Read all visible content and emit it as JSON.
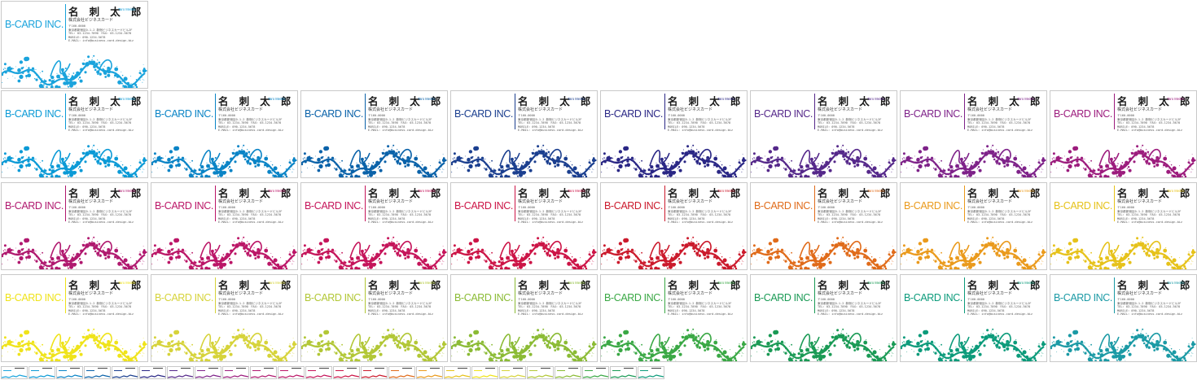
{
  "card_text": {
    "logo": "B-CARD INC.",
    "name": "名 刺 太 郎",
    "roman": "Taro Meishi",
    "company": "株式会社ビジネスカード",
    "postal": "〒160-0000",
    "address": "東京都新宿区0-1-2 新宿ビジネスカードビル2F",
    "tel_fax": "TEL: 03-1234-7890　FAX: 03-1234-5678",
    "mobile": "MOBILE: 090-1234-5678",
    "email": "E-MAIL: info@business-card-design.biz"
  },
  "featured_color": "#1aa3dc",
  "colors": [
    "#0b9ad6",
    "#0a84c6",
    "#0a62a9",
    "#1b3f8f",
    "#2a2785",
    "#55288a",
    "#7e2289",
    "#9c1c7d",
    "#b0196f",
    "#bb1667",
    "#c5145a",
    "#cc1446",
    "#cb1a2c",
    "#e06b1a",
    "#ea9a1c",
    "#e6c21a",
    "#efe31a",
    "#d6d33a",
    "#b2c736",
    "#8bbb35",
    "#3aa845",
    "#1a9a55",
    "#0c9b7b",
    "#1b9aa5",
    "#1ea0c6",
    "#1ba5d2"
  ],
  "thumbnail_colors": [
    "#1aa3dc",
    "#0b9ad6",
    "#0a84c6",
    "#0a62a9",
    "#1b3f8f",
    "#2a2785",
    "#55288a",
    "#7e2289",
    "#9c1c7d",
    "#b0196f",
    "#bb1667",
    "#c5145a",
    "#cc1446",
    "#cb1a2c",
    "#e06b1a",
    "#ea9a1c",
    "#e6c21a",
    "#efe31a",
    "#d6d33a",
    "#b2c736",
    "#8bbb35",
    "#3aa845",
    "#1a9a55",
    "#0c9b7b"
  ]
}
